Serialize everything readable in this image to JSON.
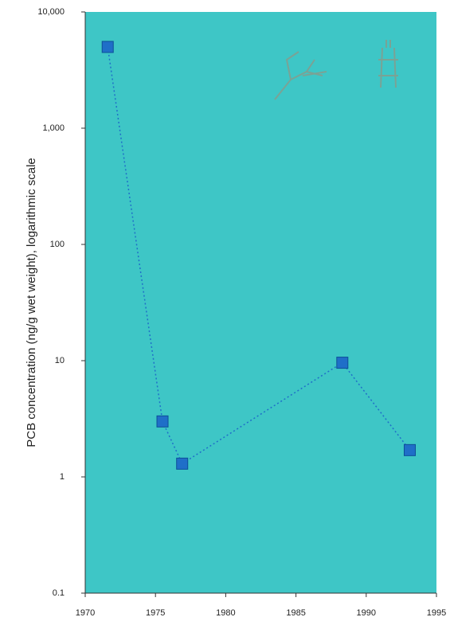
{
  "chart_data": {
    "type": "line",
    "y_label": "PCB concentration (ng/g wet weight), logarithmic scale",
    "x": [
      1971.6,
      1975.5,
      1976.9,
      1988.3,
      1993.1
    ],
    "series": [
      {
        "color": "#1f6fc8",
        "values": [
          5000,
          3,
          1.3,
          9.6,
          1.7
        ]
      }
    ],
    "xlim": [
      1970,
      1995
    ],
    "xticks": [
      1970,
      1975,
      1980,
      1985,
      1990,
      1995
    ],
    "ylim": [
      0.1,
      10000
    ],
    "yticks": [
      0.1,
      1,
      10,
      100,
      {
        "value": 1000,
        "label": "1,000"
      },
      {
        "value": 10000,
        "label": "10,000"
      }
    ],
    "y_scale": "log",
    "background": "#3ec6c6"
  }
}
